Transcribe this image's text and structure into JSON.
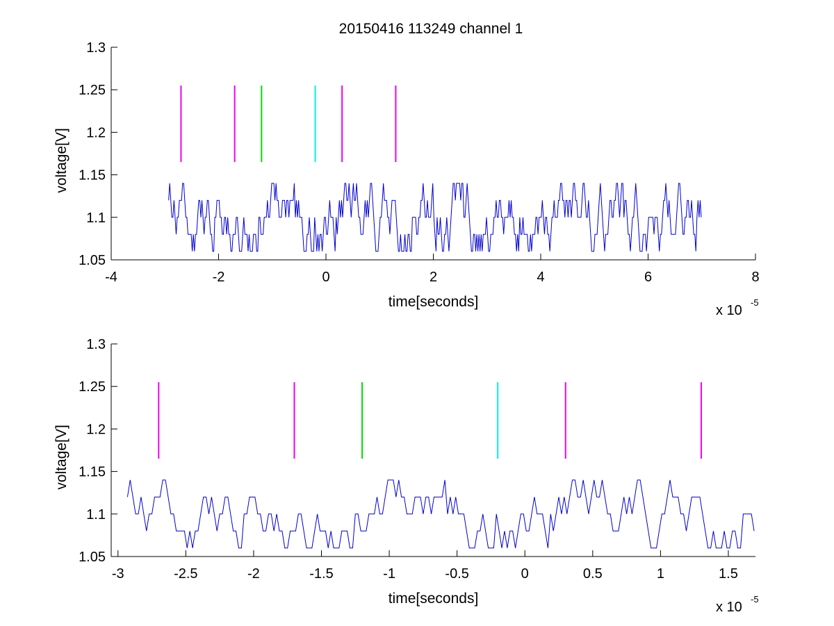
{
  "figure": {
    "title": "20150416 113249 channel 1"
  },
  "chart_data": [
    {
      "type": "line",
      "title": "20150416 113249 channel 1",
      "xlabel": "time[seconds]",
      "ylabel": "voltage[V]",
      "x_exponent_base": "x 10",
      "x_exponent_power": "-5",
      "x_scale": 1e-05,
      "xlim": [
        -4,
        8
      ],
      "ylim": [
        1.05,
        1.3
      ],
      "xticks": [
        -4,
        -2,
        0,
        2,
        4,
        6,
        8
      ],
      "xtick_labels": [
        "-4",
        "-2",
        "0",
        "2",
        "4",
        "6",
        "8"
      ],
      "yticks": [
        1.05,
        1.1,
        1.15,
        1.2,
        1.25,
        1.3
      ],
      "ytick_labels": [
        "1.05",
        "1.1",
        "1.15",
        "1.2",
        "1.25",
        "1.3"
      ],
      "grid": false,
      "series": [
        {
          "color": "#0000cc",
          "signal": {
            "x_start": -2.93,
            "x_end": 7.0,
            "levels": [
              1.06,
              1.08,
              1.1,
              1.12,
              1.14
            ],
            "sample_step": 0.02
          }
        }
      ],
      "markers": [
        {
          "x": -2.7,
          "y_from": 1.165,
          "y_to": 1.255,
          "color": "#ee00ee"
        },
        {
          "x": -1.7,
          "y_from": 1.165,
          "y_to": 1.255,
          "color": "#ee00ee"
        },
        {
          "x": -1.2,
          "y_from": 1.165,
          "y_to": 1.255,
          "color": "#00dd00"
        },
        {
          "x": -0.2,
          "y_from": 1.165,
          "y_to": 1.255,
          "color": "#00eeee"
        },
        {
          "x": 0.3,
          "y_from": 1.165,
          "y_to": 1.255,
          "color": "#ee00ee"
        },
        {
          "x": 1.3,
          "y_from": 1.165,
          "y_to": 1.255,
          "color": "#ee00ee"
        }
      ]
    },
    {
      "type": "line",
      "title": "",
      "xlabel": "time[seconds]",
      "ylabel": "voltage[V]",
      "x_exponent_base": "x 10",
      "x_exponent_power": "-5",
      "x_scale": 1e-05,
      "xlim": [
        -3.05,
        1.7
      ],
      "ylim": [
        1.05,
        1.3
      ],
      "xticks": [
        -3,
        -2.5,
        -2,
        -1.5,
        -1,
        -0.5,
        0,
        0.5,
        1,
        1.5
      ],
      "xtick_labels": [
        "-3",
        "-2.5",
        "-2",
        "-1.5",
        "-1",
        "-0.5",
        "0",
        "0.5",
        "1",
        "1.5"
      ],
      "yticks": [
        1.05,
        1.1,
        1.15,
        1.2,
        1.25,
        1.3
      ],
      "ytick_labels": [
        "1.05",
        "1.1",
        "1.15",
        "1.2",
        "1.25",
        "1.3"
      ],
      "grid": false,
      "series": [
        {
          "color": "#0000cc",
          "signal": {
            "x_start": -2.93,
            "x_end": 1.7,
            "levels": [
              1.06,
              1.08,
              1.1,
              1.12,
              1.14
            ],
            "sample_step": 0.02
          }
        }
      ],
      "markers": [
        {
          "x": -2.7,
          "y_from": 1.165,
          "y_to": 1.255,
          "color": "#ee00ee"
        },
        {
          "x": -1.7,
          "y_from": 1.165,
          "y_to": 1.255,
          "color": "#ee00ee"
        },
        {
          "x": -1.2,
          "y_from": 1.165,
          "y_to": 1.255,
          "color": "#00dd00"
        },
        {
          "x": -0.2,
          "y_from": 1.165,
          "y_to": 1.255,
          "color": "#00eeee"
        },
        {
          "x": 0.3,
          "y_from": 1.165,
          "y_to": 1.255,
          "color": "#ee00ee"
        },
        {
          "x": 1.3,
          "y_from": 1.165,
          "y_to": 1.255,
          "color": "#ee00ee"
        }
      ]
    }
  ]
}
